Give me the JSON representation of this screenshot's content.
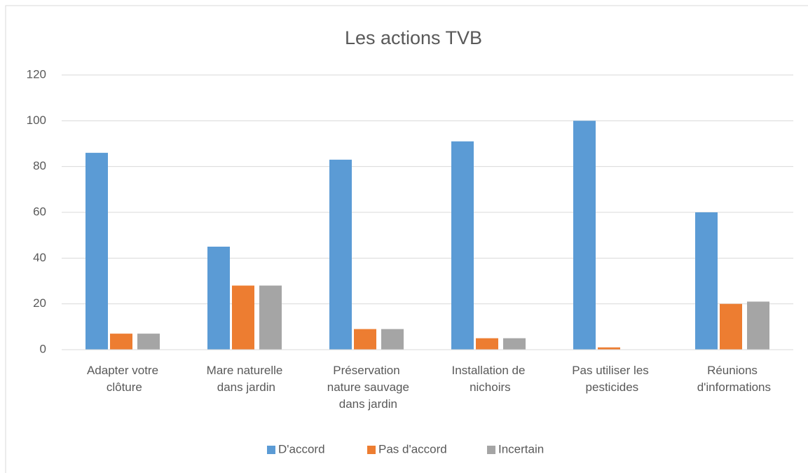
{
  "chart_data": {
    "type": "bar",
    "title": "Les actions TVB",
    "categories": [
      "Adapter votre clôture",
      "Mare naturelle dans jardin",
      "Préservation nature sauvage dans jardin",
      "Installation de nichoirs",
      "Pas utiliser les pesticides",
      "Réunions d'informations"
    ],
    "series": [
      {
        "name": "D'accord",
        "color": "#5b9bd5",
        "values": [
          86,
          45,
          83,
          91,
          100,
          60
        ]
      },
      {
        "name": "Pas d'accord",
        "color": "#ed7d31",
        "values": [
          7,
          28,
          9,
          5,
          1,
          20
        ]
      },
      {
        "name": "Incertain",
        "color": "#a5a5a5",
        "values": [
          7,
          28,
          9,
          5,
          0,
          21
        ]
      }
    ],
    "ylim": [
      0,
      120
    ],
    "yticks": [
      0,
      20,
      40,
      60,
      80,
      100,
      120
    ],
    "grid": true,
    "legend": "bottom"
  }
}
